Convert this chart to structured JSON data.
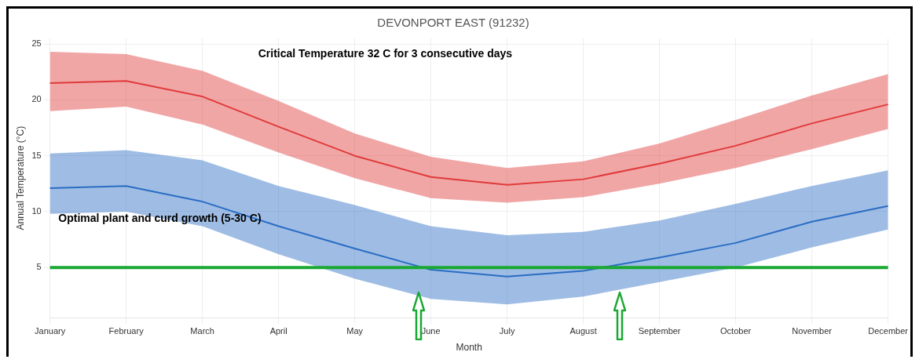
{
  "chart_data": {
    "type": "line",
    "title": "DEVONPORT EAST (91232)",
    "xlabel": "Month",
    "ylabel": "Annual Temperature (°C)",
    "categories": [
      "January",
      "February",
      "March",
      "April",
      "May",
      "June",
      "July",
      "August",
      "September",
      "October",
      "November",
      "December"
    ],
    "series": [
      {
        "color": "#e03a3a",
        "values": [
          21.5,
          21.7,
          20.3,
          17.6,
          15.0,
          13.1,
          12.4,
          12.9,
          14.3,
          15.9,
          17.9,
          19.6
        ],
        "lower": [
          19.0,
          19.4,
          17.8,
          15.3,
          13.0,
          11.2,
          10.8,
          11.3,
          12.5,
          13.9,
          15.6,
          17.4
        ],
        "upper": [
          24.3,
          24.1,
          22.6,
          19.9,
          17.0,
          14.9,
          13.9,
          14.5,
          16.1,
          18.2,
          20.4,
          22.3
        ]
      },
      {
        "color": "#2a6cc4",
        "values": [
          12.1,
          12.3,
          10.9,
          8.7,
          6.7,
          4.8,
          4.2,
          4.7,
          5.9,
          7.2,
          9.1,
          10.5
        ],
        "lower": [
          9.8,
          10.0,
          8.7,
          6.2,
          4.0,
          2.2,
          1.7,
          2.4,
          3.7,
          5.0,
          6.8,
          8.4
        ],
        "upper": [
          15.2,
          15.5,
          14.6,
          12.3,
          10.6,
          8.7,
          7.9,
          8.2,
          9.2,
          10.7,
          12.3,
          13.7
        ]
      }
    ],
    "ylim": [
      0.5,
      25.5
    ],
    "yticks": [
      5,
      10,
      15,
      20,
      25
    ],
    "grid": true,
    "legend": false,
    "marker": "none",
    "line_style": "solid",
    "ref_lines": [
      {
        "axis": "y",
        "value": 5,
        "color": "#1aa832",
        "line_style": "solid"
      }
    ],
    "annotations": [
      "Critical Temperature 32 C for 3 consecutive days",
      "Optimal plant and curd growth (5-30 C)"
    ]
  }
}
